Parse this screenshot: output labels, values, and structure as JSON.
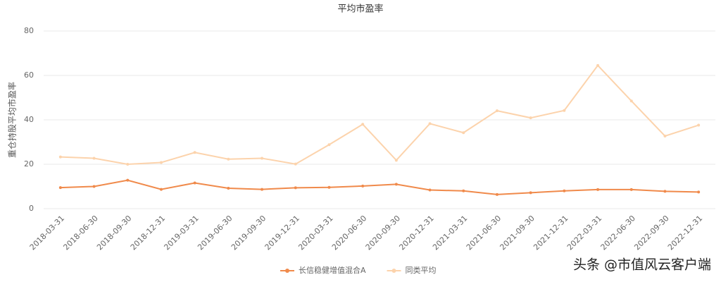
{
  "chart_data": {
    "type": "line",
    "title": "平均市盈率",
    "y_label": "重仓持股平均市盈率",
    "categories": [
      "2018-03-31",
      "2018-06-30",
      "2018-09-30",
      "2018-12-31",
      "2019-03-31",
      "2019-06-30",
      "2019-09-30",
      "2019-12-31",
      "2020-03-31",
      "2020-06-30",
      "2020-09-30",
      "2020-12-31",
      "2021-03-31",
      "2021-06-30",
      "2021-09-30",
      "2021-12-31",
      "2022-03-31",
      "2022-06-30",
      "2022-09-30",
      "2022-12-31"
    ],
    "series": [
      {
        "name": "长信稳健增值混合A",
        "color": "#f08a4b",
        "values": [
          9.5,
          10,
          12.8,
          8.7,
          11.6,
          9.2,
          8.7,
          9.4,
          9.6,
          10.2,
          11,
          8.4,
          8,
          6.4,
          7.2,
          8,
          8.6,
          8.6,
          7.8,
          7.5
        ]
      },
      {
        "name": "同类平均",
        "color": "#fcd3ac",
        "values": [
          23.3,
          22.7,
          20,
          20.8,
          25.3,
          22.3,
          22.7,
          20.1,
          28.8,
          38,
          21.8,
          38.3,
          34.2,
          44.1,
          40.9,
          44.2,
          64.5,
          48.5,
          32.7,
          37.6
        ]
      }
    ],
    "ylim": [
      0,
      80
    ],
    "yticks": [
      0,
      20,
      40,
      60,
      80
    ],
    "grid": true,
    "watermark": "头条 @市值风云客户端"
  }
}
